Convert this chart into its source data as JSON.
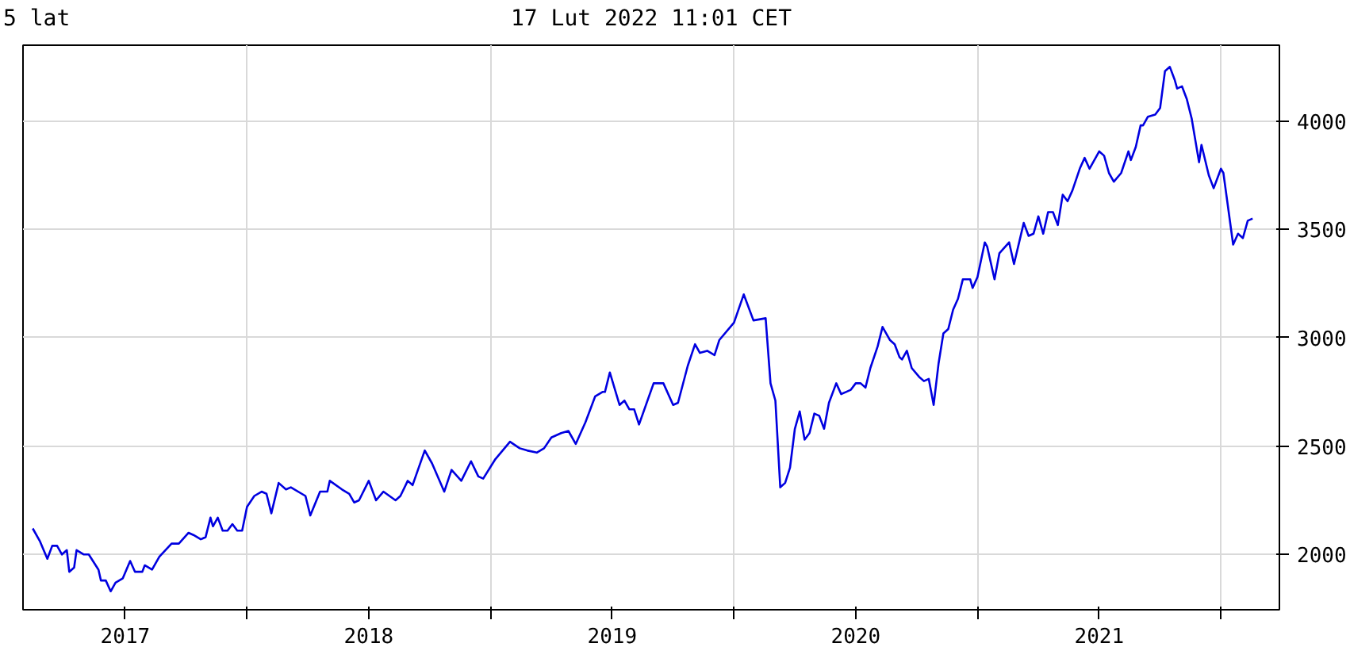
{
  "chart_data": {
    "type": "line",
    "title": "5 lat",
    "subtitle": "17 Lut 2022 11:01 CET",
    "xlim": [
      2017.08,
      2022.24
    ],
    "xticks": [
      {
        "value": 2017.5,
        "label": "2017"
      },
      {
        "value": 2018,
        "label": null
      },
      {
        "value": 2018.5,
        "label": "2018"
      },
      {
        "value": 2019,
        "label": null
      },
      {
        "value": 2019.5,
        "label": "2019"
      },
      {
        "value": 2020,
        "label": null
      },
      {
        "value": 2020.5,
        "label": "2020"
      },
      {
        "value": 2021,
        "label": null
      },
      {
        "value": 2021.5,
        "label": "2021"
      },
      {
        "value": 2022,
        "label": null
      }
    ],
    "ylim": [
      1745,
      4350
    ],
    "yticks": [
      2000,
      2500,
      3000,
      3500,
      4000
    ],
    "grid": true,
    "x": [
      2017.12,
      2017.15,
      2017.18,
      2017.2,
      2017.22,
      2017.24,
      2017.26,
      2017.27,
      2017.29,
      2017.3,
      2017.33,
      2017.35,
      2017.39,
      2017.4,
      2017.42,
      2017.44,
      2017.46,
      2017.49,
      2017.52,
      2017.54,
      2017.57,
      2017.58,
      2017.61,
      2017.64,
      2017.69,
      2017.72,
      2017.76,
      2017.78,
      2017.81,
      2017.83,
      2017.85,
      2017.86,
      2017.88,
      2017.9,
      2017.92,
      2017.94,
      2017.96,
      2017.98,
      2018.0,
      2018.03,
      2018.06,
      2018.08,
      2018.1,
      2018.13,
      2018.16,
      2018.18,
      2018.24,
      2018.26,
      2018.3,
      2018.33,
      2018.34,
      2018.39,
      2018.42,
      2018.44,
      2018.46,
      2018.5,
      2018.53,
      2018.56,
      2018.61,
      2018.63,
      2018.66,
      2018.68,
      2018.73,
      2018.76,
      2018.81,
      2018.84,
      2018.88,
      2018.92,
      2018.95,
      2018.97,
      2019.02,
      2019.08,
      2019.12,
      2019.15,
      2019.19,
      2019.22,
      2019.25,
      2019.29,
      2019.32,
      2019.35,
      2019.39,
      2019.43,
      2019.46,
      2019.47,
      2019.49,
      2019.53,
      2019.55,
      2019.57,
      2019.59,
      2019.61,
      2019.67,
      2019.71,
      2019.75,
      2019.77,
      2019.81,
      2019.84,
      2019.86,
      2019.89,
      2019.92,
      2019.94,
      2020.0,
      2020.04,
      2020.08,
      2020.13,
      2020.15,
      2020.17,
      2020.19,
      2020.21,
      2020.23,
      2020.25,
      2020.27,
      2020.29,
      2020.31,
      2020.33,
      2020.35,
      2020.37,
      2020.39,
      2020.42,
      2020.44,
      2020.46,
      2020.48,
      2020.5,
      2020.52,
      2020.54,
      2020.56,
      2020.59,
      2020.61,
      2020.64,
      2020.66,
      2020.68,
      2020.69,
      2020.71,
      2020.73,
      2020.76,
      2020.78,
      2020.8,
      2020.82,
      2020.84,
      2020.86,
      2020.88,
      2020.9,
      2020.92,
      2020.94,
      2020.97,
      2020.98,
      2021.0,
      2021.03,
      2021.04,
      2021.07,
      2021.09,
      2021.13,
      2021.15,
      2021.19,
      2021.21,
      2021.23,
      2021.25,
      2021.27,
      2021.29,
      2021.31,
      2021.33,
      2021.35,
      2021.37,
      2021.39,
      2021.42,
      2021.44,
      2021.46,
      2021.5,
      2021.52,
      2021.54,
      2021.56,
      2021.59,
      2021.62,
      2021.63,
      2021.65,
      2021.67,
      2021.68,
      2021.7,
      2021.73,
      2021.75,
      2021.77,
      2021.79,
      2021.81,
      2021.82,
      2021.84,
      2021.86,
      2021.88,
      2021.91,
      2021.92,
      2021.95,
      2021.97,
      2022.0,
      2022.01,
      2022.05,
      2022.07,
      2022.09,
      2022.11,
      2022.13
    ],
    "series": [
      {
        "color": "#0000e0",
        "values": [
          2120,
          2060,
          1980,
          2040,
          2040,
          2000,
          2020,
          1920,
          1940,
          2020,
          2000,
          2000,
          1930,
          1880,
          1880,
          1830,
          1870,
          1890,
          1970,
          1920,
          1920,
          1950,
          1930,
          1990,
          2050,
          2050,
          2100,
          2090,
          2070,
          2080,
          2170,
          2130,
          2170,
          2110,
          2110,
          2140,
          2110,
          2110,
          2220,
          2270,
          2290,
          2280,
          2190,
          2330,
          2300,
          2310,
          2270,
          2180,
          2290,
          2290,
          2340,
          2300,
          2280,
          2240,
          2250,
          2340,
          2250,
          2290,
          2250,
          2270,
          2340,
          2320,
          2480,
          2420,
          2290,
          2390,
          2340,
          2430,
          2360,
          2350,
          2440,
          2520,
          2490,
          2480,
          2470,
          2490,
          2540,
          2560,
          2570,
          2510,
          2610,
          2730,
          2750,
          2750,
          2840,
          2690,
          2710,
          2670,
          2670,
          2600,
          2790,
          2790,
          2690,
          2700,
          2870,
          2970,
          2930,
          2940,
          2920,
          2990,
          3070,
          3200,
          3080,
          3090,
          2790,
          2710,
          2310,
          2330,
          2400,
          2580,
          2660,
          2530,
          2560,
          2650,
          2640,
          2580,
          2700,
          2790,
          2740,
          2750,
          2760,
          2790,
          2790,
          2770,
          2860,
          2960,
          3050,
          2990,
          2970,
          2910,
          2900,
          2940,
          2860,
          2820,
          2800,
          2810,
          2690,
          2880,
          3020,
          3040,
          3130,
          3180,
          3270,
          3270,
          3230,
          3280,
          3440,
          3420,
          3270,
          3390,
          3440,
          3340,
          3530,
          3470,
          3480,
          3560,
          3480,
          3580,
          3580,
          3520,
          3660,
          3630,
          3680,
          3780,
          3830,
          3780,
          3860,
          3840,
          3760,
          3720,
          3760,
          3860,
          3820,
          3880,
          3980,
          3980,
          4020,
          4030,
          4060,
          4230,
          4250,
          4190,
          4150,
          4160,
          4100,
          4010,
          3810,
          3890,
          3750,
          3690,
          3780,
          3760,
          3430,
          3480,
          3460,
          3540,
          3550
        ]
      }
    ]
  }
}
